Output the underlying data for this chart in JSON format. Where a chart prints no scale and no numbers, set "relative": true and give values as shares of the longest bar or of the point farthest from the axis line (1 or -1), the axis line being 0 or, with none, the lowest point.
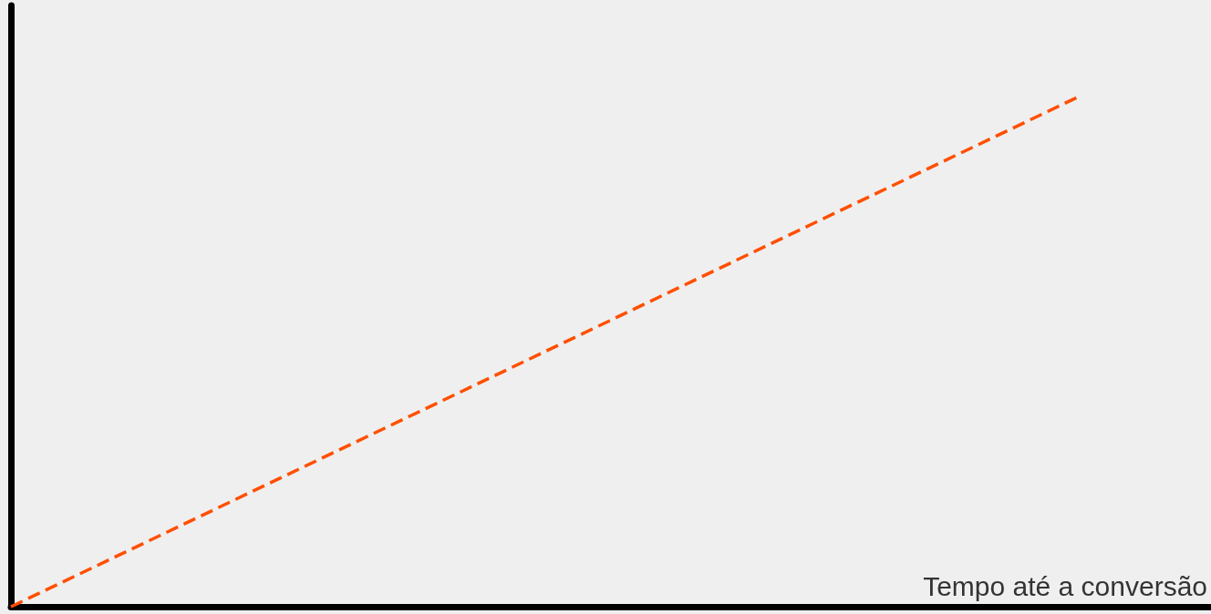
{
  "chart_data": {
    "type": "line",
    "xlabel": "Tempo até a conversão",
    "relative": true,
    "line_style": "dashed",
    "categories": [
      null,
      null,
      null,
      null,
      null,
      null,
      null,
      null,
      null,
      null
    ],
    "series": [
      {
        "color": "#ff4f00",
        "values": [
          0,
          0.125,
          0.25,
          0.375,
          0.5,
          0.625,
          0.75,
          0.875,
          1,
          null
        ]
      }
    ]
  }
}
